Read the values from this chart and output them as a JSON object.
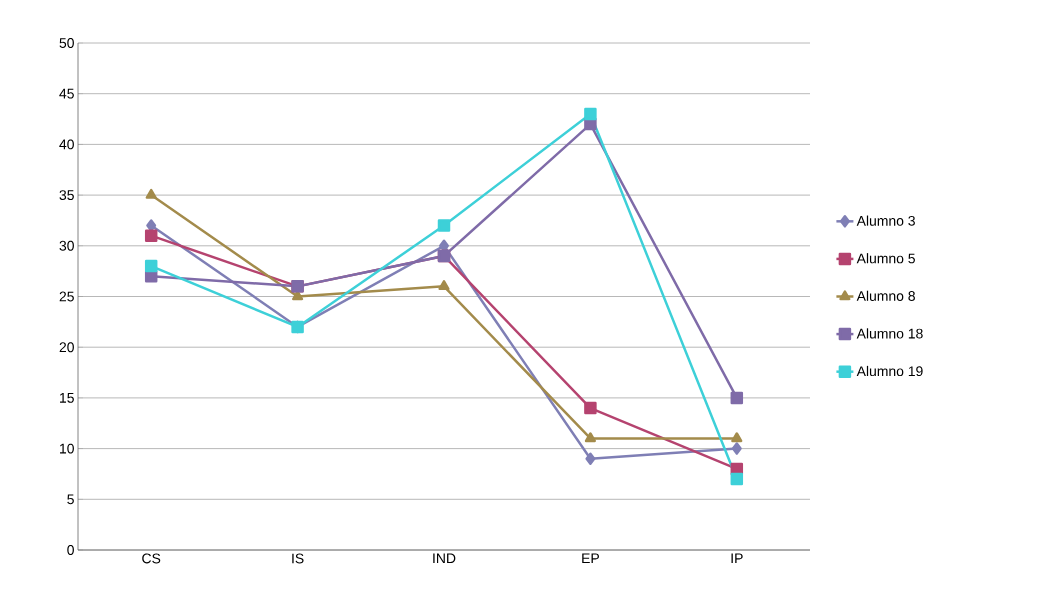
{
  "chart_data": {
    "type": "line",
    "categories": [
      "CS",
      "IS",
      "IND",
      "EP",
      "IP"
    ],
    "series": [
      {
        "name": "Alumno 3",
        "color": "#7f7fb5",
        "marker": "diamond",
        "values": [
          32,
          22,
          30,
          9,
          10
        ]
      },
      {
        "name": "Alumno 5",
        "color": "#b5436f",
        "marker": "square",
        "values": [
          31,
          26,
          29,
          14,
          8
        ]
      },
      {
        "name": "Alumno 8",
        "color": "#a38b4b",
        "marker": "triangle",
        "values": [
          35,
          25,
          26,
          11,
          11
        ]
      },
      {
        "name": "Alumno 18",
        "color": "#7f6ba8",
        "marker": "square",
        "values": [
          27,
          26,
          29,
          42,
          15
        ]
      },
      {
        "name": "Alumno 19",
        "color": "#3dd0d8",
        "marker": "square",
        "values": [
          28,
          22,
          32,
          43,
          7
        ]
      }
    ],
    "ylim": [
      0,
      50
    ],
    "yticks": [
      0,
      5,
      10,
      15,
      20,
      25,
      30,
      35,
      40,
      45,
      50
    ],
    "grid": "y",
    "legend": "right",
    "line_style": "solid"
  }
}
